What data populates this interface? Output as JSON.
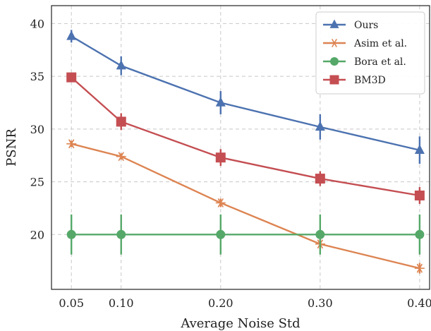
{
  "chart_data": {
    "type": "line",
    "xlabel": "Average Noise Std",
    "ylabel": "PSNR",
    "x": [
      0.05,
      0.1,
      0.2,
      0.3,
      0.4
    ],
    "x_tick_labels": [
      "0.05",
      "0.10",
      "0.20",
      "0.30",
      "0.40"
    ],
    "y_ticks": [
      20,
      25,
      30,
      35,
      40
    ],
    "y_tick_labels": [
      "20",
      "25",
      "30",
      "35",
      "40"
    ],
    "xlim": [
      0.03,
      0.41
    ],
    "ylim": [
      14.8,
      41.7
    ],
    "grid": true,
    "legend_position": "top-right",
    "series": [
      {
        "name": "Ours",
        "color": "#4c72b0",
        "marker": "triangle-up",
        "values": [
          38.8,
          36.0,
          32.5,
          30.2,
          28.0
        ],
        "errors": [
          0.6,
          0.9,
          1.1,
          1.2,
          1.3
        ]
      },
      {
        "name": "Asim et al.",
        "color": "#dd8452",
        "marker": "asterisk",
        "values": [
          28.6,
          27.4,
          23.0,
          19.1,
          16.8
        ],
        "errors": [
          0.3,
          0.3,
          0.4,
          0.5,
          0.5
        ]
      },
      {
        "name": "Bora et al.",
        "color": "#55a868",
        "marker": "circle",
        "values": [
          20.0,
          20.0,
          20.0,
          20.0,
          20.0
        ],
        "errors": [
          1.9,
          1.9,
          1.9,
          1.9,
          1.9
        ]
      },
      {
        "name": "BM3D",
        "color": "#c44e52",
        "marker": "square",
        "values": [
          34.9,
          30.7,
          27.3,
          25.3,
          23.7
        ],
        "errors": [
          0.4,
          0.8,
          0.8,
          0.7,
          0.8
        ]
      }
    ]
  }
}
